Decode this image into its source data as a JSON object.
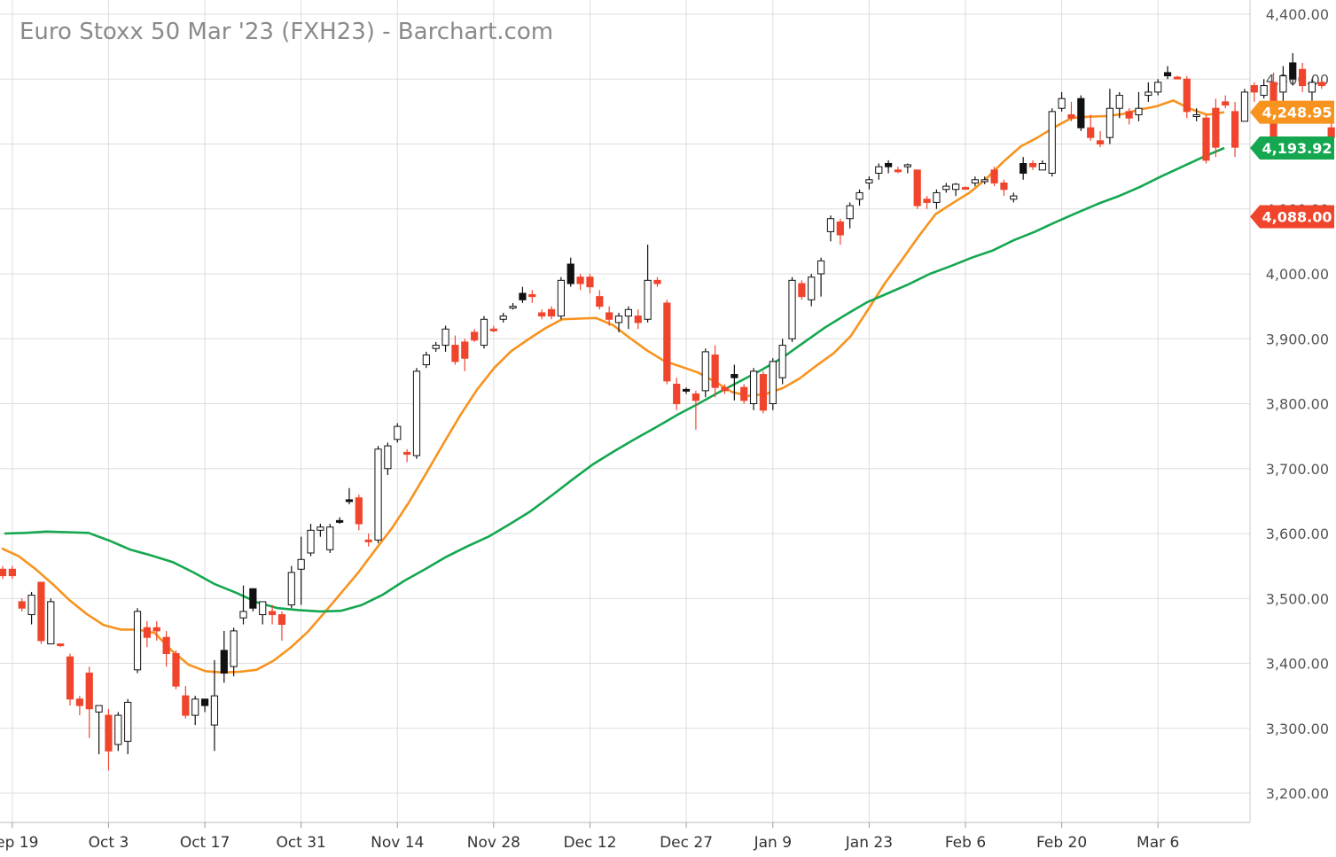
{
  "chart_data": {
    "type": "candlestick",
    "title": "Euro Stoxx 50 Mar '23 (FXH23) - Barchart.com",
    "ylim": [
      3170,
      4420
    ],
    "y_ticks": [
      "3,200.00",
      "3,300.00",
      "3,400.00",
      "3,500.00",
      "3,600.00",
      "3,700.00",
      "3,800.00",
      "3,900.00",
      "4,000.00",
      "4,100.00",
      "4,200.00",
      "4,300.00",
      "4,400.00"
    ],
    "y_tick_values": [
      3200,
      3300,
      3400,
      3500,
      3600,
      3700,
      3800,
      3900,
      4000,
      4100,
      4200,
      4300,
      4400
    ],
    "x_labels": [
      "Sep 19",
      "Oct 3",
      "Oct 17",
      "Oct 31",
      "Nov 14",
      "Nov 28",
      "Dec 12",
      "Dec 27",
      "Jan 9",
      "Jan 23",
      "Feb 6",
      "Feb 20",
      "Mar 6"
    ],
    "x_label_index": [
      1,
      11,
      21,
      31,
      41,
      51,
      61,
      71,
      80,
      90,
      100,
      110,
      120
    ],
    "grid": true,
    "legend": "none",
    "colors": {
      "up": "#000000",
      "down": "#f0452c",
      "ma_fast": "#f7931e",
      "ma_slow": "#14a750",
      "grid": "#dddddd"
    },
    "candles": [
      [
        3545,
        3550,
        3530,
        3535,
        "red"
      ],
      [
        3545,
        3550,
        3530,
        3535,
        "red"
      ],
      [
        3495,
        3500,
        3480,
        3485,
        "red"
      ],
      [
        3475,
        3510,
        3460,
        3505,
        "hollow"
      ],
      [
        3525,
        3525,
        3430,
        3435,
        "red"
      ],
      [
        3430,
        3500,
        3430,
        3495,
        "hollow"
      ],
      [
        3430,
        3430,
        3425,
        3428,
        "red"
      ],
      [
        3410,
        3415,
        3335,
        3345,
        "red"
      ],
      [
        3345,
        3350,
        3320,
        3335,
        "red"
      ],
      [
        3385,
        3395,
        3285,
        3330,
        "red"
      ],
      [
        3325,
        3335,
        3260,
        3335,
        "hollow"
      ],
      [
        3320,
        3330,
        3235,
        3265,
        "red"
      ],
      [
        3275,
        3325,
        3265,
        3320,
        "hollow"
      ],
      [
        3280,
        3345,
        3260,
        3340,
        "hollow"
      ],
      [
        3390,
        3485,
        3385,
        3480,
        "hollow"
      ],
      [
        3455,
        3465,
        3425,
        3440,
        "red"
      ],
      [
        3455,
        3465,
        3435,
        3450,
        "red"
      ],
      [
        3440,
        3450,
        3395,
        3415,
        "red"
      ],
      [
        3415,
        3420,
        3360,
        3365,
        "red"
      ],
      [
        3350,
        3365,
        3315,
        3320,
        "red"
      ],
      [
        3320,
        3350,
        3305,
        3345,
        "hollow"
      ],
      [
        3345,
        3345,
        3325,
        3335,
        "black"
      ],
      [
        3305,
        3405,
        3265,
        3350,
        "hollow"
      ],
      [
        3385,
        3450,
        3370,
        3420,
        "black"
      ],
      [
        3395,
        3455,
        3380,
        3450,
        "hollow"
      ],
      [
        3470,
        3520,
        3460,
        3480,
        "hollow"
      ],
      [
        3485,
        3510,
        3480,
        3515,
        "black"
      ],
      [
        3475,
        3490,
        3460,
        3495,
        "hollow"
      ],
      [
        3480,
        3490,
        3460,
        3475,
        "red"
      ],
      [
        3460,
        3480,
        3435,
        3475,
        "red"
      ],
      [
        3490,
        3550,
        3485,
        3540,
        "hollow"
      ],
      [
        3545,
        3595,
        3490,
        3560,
        "hollow"
      ],
      [
        3570,
        3615,
        3565,
        3605,
        "hollow"
      ],
      [
        3605,
        3615,
        3595,
        3610,
        "hollow"
      ],
      [
        3575,
        3615,
        3570,
        3610,
        "hollow"
      ],
      [
        3620,
        3625,
        3615,
        3620,
        "black"
      ],
      [
        3650,
        3670,
        3645,
        3652,
        "black"
      ],
      [
        3655,
        3660,
        3605,
        3615,
        "red"
      ],
      [
        3590,
        3600,
        3580,
        3588,
        "red"
      ],
      [
        3590,
        3735,
        3585,
        3730,
        "hollow"
      ],
      [
        3700,
        3740,
        3690,
        3735,
        "hollow"
      ],
      [
        3745,
        3770,
        3740,
        3765,
        "hollow"
      ],
      [
        3725,
        3730,
        3710,
        3722,
        "red"
      ],
      [
        3720,
        3855,
        3715,
        3850,
        "hollow"
      ],
      [
        3860,
        3880,
        3855,
        3875,
        "hollow"
      ],
      [
        3885,
        3895,
        3880,
        3890,
        "hollow"
      ],
      [
        3890,
        3920,
        3880,
        3915,
        "hollow"
      ],
      [
        3890,
        3905,
        3860,
        3865,
        "red"
      ],
      [
        3895,
        3900,
        3850,
        3870,
        "red"
      ],
      [
        3910,
        3915,
        3895,
        3898,
        "red"
      ],
      [
        3890,
        3935,
        3885,
        3930,
        "hollow"
      ],
      [
        3915,
        3920,
        3910,
        3915,
        "red"
      ],
      [
        3930,
        3940,
        3925,
        3935,
        "hollow"
      ],
      [
        3950,
        3955,
        3945,
        3950,
        "hollow"
      ],
      [
        3960,
        3980,
        3955,
        3970,
        "black"
      ],
      [
        3965,
        3975,
        3955,
        3968,
        "red"
      ],
      [
        3940,
        3945,
        3930,
        3935,
        "red"
      ],
      [
        3935,
        3950,
        3930,
        3945,
        "red"
      ],
      [
        3935,
        3995,
        3930,
        3990,
        "hollow"
      ],
      [
        4015,
        4025,
        3980,
        3985,
        "black"
      ],
      [
        3995,
        4000,
        3975,
        3985,
        "red"
      ],
      [
        3995,
        4000,
        3970,
        3980,
        "red"
      ],
      [
        3965,
        3975,
        3945,
        3950,
        "red"
      ],
      [
        3940,
        3950,
        3920,
        3930,
        "red"
      ],
      [
        3925,
        3940,
        3910,
        3935,
        "hollow"
      ],
      [
        3945,
        3950,
        3915,
        3935,
        "hollow"
      ],
      [
        3935,
        3945,
        3915,
        3925,
        "red"
      ],
      [
        3930,
        4045,
        3925,
        3990,
        "hollow"
      ],
      [
        3990,
        3995,
        3980,
        3985,
        "red"
      ],
      [
        3955,
        3960,
        3830,
        3835,
        "red"
      ],
      [
        3830,
        3840,
        3790,
        3800,
        "red"
      ],
      [
        3820,
        3825,
        3815,
        3822,
        "black"
      ],
      [
        3815,
        3820,
        3760,
        3805,
        "red"
      ],
      [
        3820,
        3885,
        3810,
        3880,
        "hollow"
      ],
      [
        3875,
        3890,
        3810,
        3825,
        "red"
      ],
      [
        3825,
        3830,
        3815,
        3820,
        "red"
      ],
      [
        3840,
        3860,
        3805,
        3845,
        "black"
      ],
      [
        3825,
        3830,
        3800,
        3805,
        "red"
      ],
      [
        3800,
        3855,
        3790,
        3850,
        "hollow"
      ],
      [
        3845,
        3850,
        3785,
        3790,
        "red"
      ],
      [
        3800,
        3870,
        3790,
        3865,
        "hollow"
      ],
      [
        3840,
        3900,
        3830,
        3890,
        "hollow"
      ],
      [
        3900,
        3995,
        3895,
        3990,
        "hollow"
      ],
      [
        3985,
        3990,
        3960,
        3965,
        "red"
      ],
      [
        3960,
        4000,
        3950,
        3995,
        "hollow"
      ],
      [
        4000,
        4025,
        3965,
        4020,
        "hollow"
      ],
      [
        4065,
        4090,
        4050,
        4085,
        "hollow"
      ],
      [
        4080,
        4085,
        4045,
        4060,
        "red"
      ],
      [
        4085,
        4110,
        4070,
        4105,
        "hollow"
      ],
      [
        4115,
        4130,
        4105,
        4125,
        "hollow"
      ],
      [
        4140,
        4150,
        4130,
        4145,
        "hollow"
      ],
      [
        4155,
        4170,
        4145,
        4165,
        "hollow"
      ],
      [
        4165,
        4175,
        4155,
        4170,
        "black"
      ],
      [
        4160,
        4165,
        4155,
        4160,
        "red"
      ],
      [
        4165,
        4170,
        4155,
        4168,
        "hollow"
      ],
      [
        4160,
        4160,
        4100,
        4105,
        "red"
      ],
      [
        4110,
        4120,
        4100,
        4115,
        "red"
      ],
      [
        4110,
        4130,
        4100,
        4125,
        "hollow"
      ],
      [
        4130,
        4140,
        4125,
        4135,
        "hollow"
      ],
      [
        4130,
        4140,
        4120,
        4138,
        "hollow"
      ],
      [
        4132,
        4135,
        4130,
        4133,
        "red"
      ],
      [
        4140,
        4150,
        4135,
        4145,
        "hollow"
      ],
      [
        4145,
        4150,
        4138,
        4142,
        "hollow"
      ],
      [
        4140,
        4165,
        4135,
        4160,
        "red"
      ],
      [
        4140,
        4145,
        4120,
        4130,
        "red"
      ],
      [
        4120,
        4125,
        4110,
        4115,
        "hollow"
      ],
      [
        4155,
        4180,
        4145,
        4170,
        "black"
      ],
      [
        4170,
        4175,
        4160,
        4165,
        "red"
      ],
      [
        4160,
        4175,
        4160,
        4170,
        "hollow"
      ],
      [
        4155,
        4255,
        4150,
        4250,
        "hollow"
      ],
      [
        4255,
        4280,
        4250,
        4270,
        "hollow"
      ],
      [
        4245,
        4265,
        4235,
        4240,
        "red"
      ],
      [
        4225,
        4275,
        4220,
        4270,
        "black"
      ],
      [
        4225,
        4245,
        4205,
        4210,
        "red"
      ],
      [
        4205,
        4220,
        4195,
        4200,
        "red"
      ],
      [
        4210,
        4285,
        4200,
        4255,
        "hollow"
      ],
      [
        4255,
        4280,
        4240,
        4275,
        "hollow"
      ],
      [
        4240,
        4255,
        4230,
        4250,
        "red"
      ],
      [
        4255,
        4280,
        4235,
        4245,
        "hollow"
      ],
      [
        4275,
        4295,
        4265,
        4280,
        "hollow"
      ],
      [
        4280,
        4300,
        4275,
        4295,
        "hollow"
      ],
      [
        4305,
        4320,
        4300,
        4310,
        "black"
      ],
      [
        4302,
        4305,
        4300,
        4303,
        "red"
      ],
      [
        4300,
        4305,
        4240,
        4250,
        "red"
      ],
      [
        4245,
        4255,
        4235,
        4245,
        "hollow"
      ],
      [
        4240,
        4245,
        4170,
        4175,
        "red"
      ],
      [
        4255,
        4270,
        4180,
        4195,
        "red"
      ],
      [
        4265,
        4275,
        4255,
        4260,
        "red"
      ],
      [
        4250,
        4265,
        4180,
        4195,
        "red"
      ],
      [
        4235,
        4285,
        4235,
        4280,
        "hollow"
      ],
      [
        4280,
        4295,
        4265,
        4290,
        "red"
      ],
      [
        4290,
        4300,
        4270,
        4275,
        "hollow"
      ],
      [
        4295,
        4310,
        4180,
        4195,
        "red"
      ],
      [
        4305,
        4320,
        4255,
        4280,
        "hollow"
      ],
      [
        4325,
        4340,
        4290,
        4300,
        "black"
      ],
      [
        4315,
        4325,
        4280,
        4290,
        "red"
      ],
      [
        4295,
        4300,
        4260,
        4280,
        "hollow"
      ],
      [
        4295,
        4300,
        4285,
        4290,
        "red"
      ],
      [
        4225,
        4260,
        4200,
        4210,
        "red"
      ],
      [
        4210,
        4215,
        4065,
        4090,
        "red"
      ],
      [
        4095,
        4120,
        4070,
        4088,
        "red"
      ]
    ],
    "ma_fast": [
      3577,
      3565,
      3545,
      3522,
      3497,
      3476,
      3459,
      3452,
      3452,
      3447,
      3420,
      3398,
      3388,
      3386,
      3387,
      3390,
      3404,
      3424,
      3448,
      3478,
      3509,
      3540,
      3575,
      3609,
      3649,
      3693,
      3738,
      3782,
      3822,
      3855,
      3881,
      3899,
      3916,
      3930,
      3931,
      3932,
      3921,
      3901,
      3882,
      3866,
      3857,
      3848,
      3834,
      3818,
      3812,
      3815,
      3824,
      3839,
      3859,
      3878,
      3904,
      3944,
      3985,
      4021,
      4058,
      4092,
      4109,
      4125,
      4147,
      4173,
      4196,
      4210,
      4226,
      4240,
      4242,
      4243,
      4246,
      4253,
      4258,
      4267,
      4254,
      4245,
      4248.95
    ],
    "ma_slow": [
      3600,
      3601,
      3603,
      3602,
      3601,
      3589,
      3575,
      3566,
      3556,
      3540,
      3522,
      3509,
      3494,
      3485,
      3482,
      3480,
      3481,
      3490,
      3506,
      3527,
      3545,
      3564,
      3580,
      3595,
      3614,
      3634,
      3658,
      3683,
      3707,
      3727,
      3746,
      3764,
      3783,
      3800,
      3818,
      3835,
      3852,
      3871,
      3894,
      3917,
      3937,
      3956,
      3970,
      3984,
      4000,
      4012,
      4025,
      4036,
      4052,
      4065,
      4080,
      4094,
      4108,
      4120,
      4134,
      4150,
      4165,
      4180,
      4193.92
    ]
  },
  "badges": [
    {
      "label": "4,248.95",
      "value": 4248.95,
      "color": "#f7931e"
    },
    {
      "label": "4,193.92",
      "value": 4193.92,
      "color": "#14a750"
    },
    {
      "label": "4,088.00",
      "value": 4088.0,
      "color": "#f0452c"
    }
  ]
}
